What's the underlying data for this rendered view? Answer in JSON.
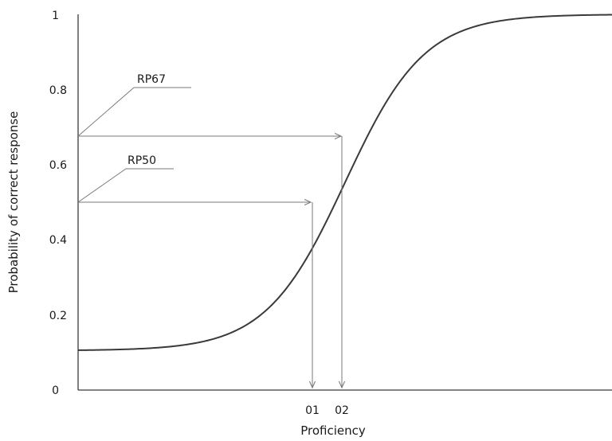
{
  "chart_data": {
    "type": "line",
    "title": "",
    "xlabel": "Proficiency",
    "ylabel": "Probability of correct response",
    "ylim": [
      0,
      1
    ],
    "yticks": [
      "0",
      "0.2",
      "0.4",
      "0.6",
      "0.8",
      "1"
    ],
    "grid": false,
    "series": [
      {
        "model": "3PL item characteristic curve",
        "params": {
          "c": 0.105,
          "b": 0.0,
          "a": 1.9
        },
        "color": "#3a3a3a"
      }
    ],
    "markers": [
      {
        "label": "RP67",
        "y": 0.67,
        "theta_label": "02"
      },
      {
        "label": "RP50",
        "y": 0.5,
        "theta_label": "01"
      }
    ],
    "colors": {
      "curve": "#3a3a3a",
      "arrows": "#7a7a7a",
      "axis": "#3a3a3a"
    }
  }
}
